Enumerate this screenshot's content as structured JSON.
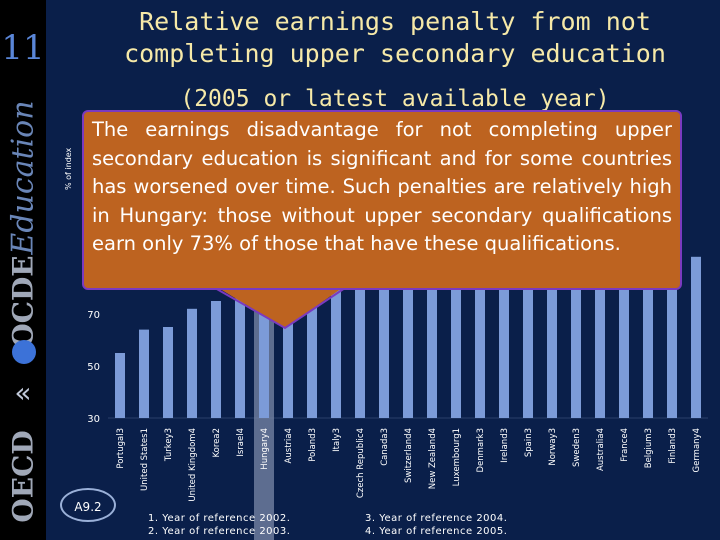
{
  "slide": {
    "number": "11"
  },
  "sidebar": {
    "education": "Education",
    "ocde": "OCDE",
    "oecd": "OECD"
  },
  "title": "Relative earnings penalty from not completing upper secondary education",
  "subtitle": "(2005 or latest available year)",
  "callout": "The earnings disadvantage for not completing upper secondary education is significant and for some countries has worsened over time. Such penalties are relatively high in Hungary: those without upper secondary qualifications earn only 73% of those that have these qualifications.",
  "badge": "A9.2",
  "footnotes": [
    "1. Year of reference 2002.",
    "2. Year of reference 2003.",
    "3. Year of reference 2004.",
    "4. Year of reference 2005."
  ],
  "colors": {
    "bar": "#7c9bd8",
    "bar_highlight": "#7a88a8",
    "text": "#f6e9a8",
    "callout": "#bd6320"
  },
  "chart_data": {
    "type": "bar",
    "ylabel": "% of index",
    "ylim": [
      30,
      100
    ],
    "yticks": [
      30,
      50,
      70
    ],
    "highlight": "Hungary4",
    "categories": [
      "Portugal3",
      "United States1",
      "Turkey3",
      "United Kingdom4",
      "Korea2",
      "Israel4",
      "Hungary4",
      "Austria4",
      "Poland3",
      "Italy3",
      "Czech Republic4",
      "Canada3",
      "Switzerland4",
      "New Zealand4",
      "Luxembourg1",
      "Denmark3",
      "Ireland3",
      "Spain3",
      "Norway3",
      "Sweden3",
      "Australia4",
      "France4",
      "Belgium3",
      "Finland3",
      "Germany4"
    ],
    "values": [
      55,
      64,
      65,
      72,
      75,
      76,
      73,
      80,
      81,
      82,
      83,
      83,
      84,
      85,
      85,
      86,
      86,
      87,
      88,
      88,
      89,
      89,
      90,
      91,
      92
    ]
  }
}
